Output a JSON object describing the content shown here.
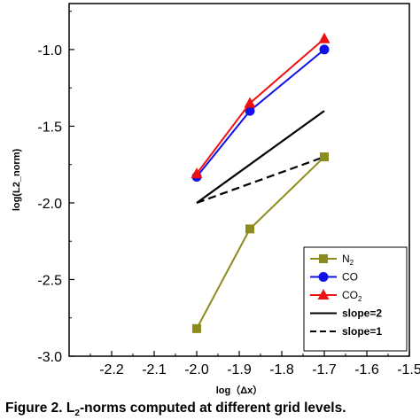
{
  "chart_data": {
    "type": "line",
    "xlabel": "log（Δx）",
    "ylabel": "log(L2_norm)",
    "xlim": [
      -2.3,
      -1.5
    ],
    "ylim": [
      -3.0,
      -0.7
    ],
    "xticks": [
      "-2.2",
      "-2.1",
      "-2.0",
      "-1.9",
      "-1.8",
      "-1.7",
      "-1.6",
      "-1.5"
    ],
    "yticks": [
      "-3.0",
      "-2.5",
      "-2.0",
      "-1.5",
      "-1.0"
    ],
    "grid": false,
    "legend_position": "bottom-right",
    "series": [
      {
        "name": "N2",
        "color": "#8c8c1e",
        "marker": "square",
        "line": "solid",
        "x": [
          -2.0,
          -1.875,
          -1.7
        ],
        "y": [
          -2.82,
          -2.17,
          -1.7
        ]
      },
      {
        "name": "CO",
        "color": "#1010e8",
        "marker": "circle",
        "line": "solid",
        "x": [
          -2.0,
          -1.875,
          -1.7
        ],
        "y": [
          -1.83,
          -1.4,
          -1.0
        ]
      },
      {
        "name": "CO2",
        "color": "#ee1111",
        "marker": "triangle",
        "line": "solid",
        "x": [
          -2.0,
          -1.875,
          -1.7
        ],
        "y": [
          -1.81,
          -1.35,
          -0.93
        ]
      },
      {
        "name": "slope=2",
        "color": "#000000",
        "marker": "none",
        "line": "solid",
        "x": [
          -2.0,
          -1.7
        ],
        "y": [
          -2.0,
          -1.4
        ]
      },
      {
        "name": "slope=1",
        "color": "#000000",
        "marker": "none",
        "line": "dashed",
        "x": [
          -2.0,
          -1.7
        ],
        "y": [
          -2.0,
          -1.7
        ]
      }
    ]
  },
  "caption": {
    "prefix": "Figure 2. L",
    "sub": "2",
    "suffix": "-norms computed at different grid levels."
  }
}
